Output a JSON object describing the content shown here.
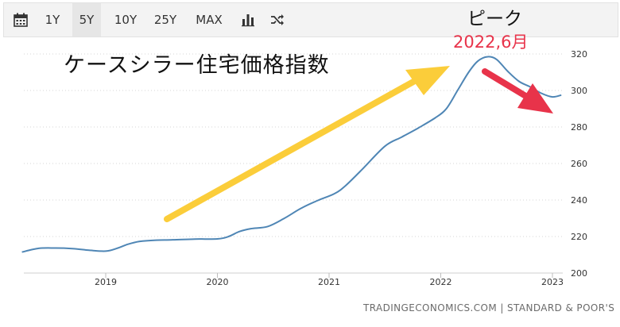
{
  "toolbar": {
    "ranges": [
      "1Y",
      "5Y",
      "10Y",
      "25Y",
      "MAX"
    ],
    "active_range": "5Y",
    "icons": [
      "calendar-icon",
      "bar-chart-icon",
      "shuffle-icon"
    ]
  },
  "annotations": {
    "title": "ケースシラー住宅価格指数",
    "peak_label": "ピーク",
    "peak_date": "2022,6月"
  },
  "source": "TRADINGECONOMICS.COM | STANDARD & POOR'S",
  "colors": {
    "line": "#4f86b5",
    "up_arrow": "#fbcd3a",
    "down_arrow": "#e8334a",
    "peak_date": "#e8334a"
  },
  "chart_data": {
    "type": "line",
    "x_ticks": [
      "2019",
      "2020",
      "2021",
      "2022",
      "2023"
    ],
    "y_ticks": [
      200,
      220,
      240,
      260,
      280,
      300,
      320
    ],
    "ylim": [
      200,
      320
    ],
    "grid": "horizontal dotted",
    "series": [
      {
        "x": [
          2018.25,
          2018.4,
          2018.55,
          2018.7,
          2018.85,
          2019.0,
          2019.1,
          2019.2,
          2019.3,
          2019.45,
          2019.6,
          2019.8,
          2020.0,
          2020.1,
          2020.2,
          2020.3,
          2020.45,
          2020.6,
          2020.75,
          2020.9,
          2021.05,
          2021.15,
          2021.3,
          2021.5,
          2021.65,
          2021.8,
          2021.95,
          2022.05,
          2022.15,
          2022.25,
          2022.33,
          2022.42,
          2022.5,
          2022.6,
          2022.7,
          2022.8,
          2022.9,
          2023.0,
          2023.08
        ],
        "y": [
          211.5,
          213.5,
          213.7,
          213.4,
          212.5,
          212.0,
          213.5,
          215.8,
          217.3,
          218.0,
          218.2,
          218.6,
          218.7,
          220.0,
          222.8,
          224.3,
          225.5,
          230.0,
          235.5,
          239.8,
          243.5,
          248.0,
          257.0,
          269.5,
          274.5,
          279.5,
          285.0,
          290.0,
          300.0,
          310.0,
          316.0,
          318.5,
          317.0,
          310.5,
          305.0,
          302.0,
          298.5,
          296.5,
          297.5
        ]
      }
    ]
  }
}
